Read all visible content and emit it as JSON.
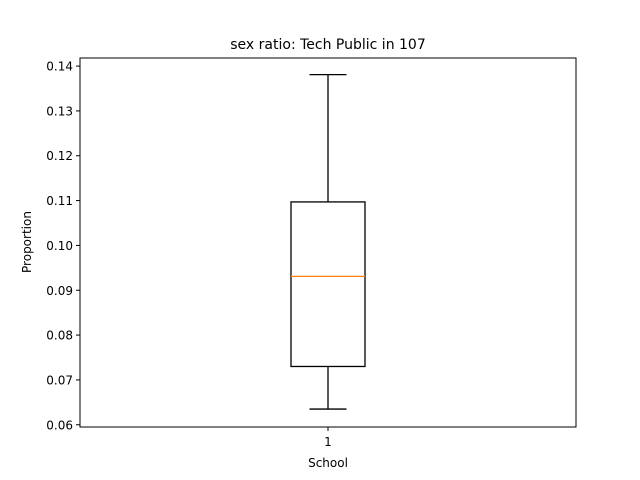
{
  "chart_data": {
    "type": "box",
    "title": "sex ratio: Tech Public in 107",
    "xlabel": "School",
    "ylabel": "Proportion",
    "categories": [
      "1"
    ],
    "ylim": [
      0.0595,
      0.1418
    ],
    "yticks": [
      0.06,
      0.07,
      0.08,
      0.09,
      0.1,
      0.11,
      0.12,
      0.13,
      0.14
    ],
    "ytick_labels": [
      "0.06",
      "0.07",
      "0.08",
      "0.09",
      "0.10",
      "0.11",
      "0.12",
      "0.13",
      "0.14"
    ],
    "boxes": [
      {
        "label": "1",
        "whisker_low": 0.0635,
        "q1": 0.073,
        "median": 0.0931,
        "q3": 0.1097,
        "whisker_high": 0.1381
      }
    ],
    "grid": false,
    "colors": {
      "box": "#000000",
      "median": "#ff7f0e"
    }
  }
}
